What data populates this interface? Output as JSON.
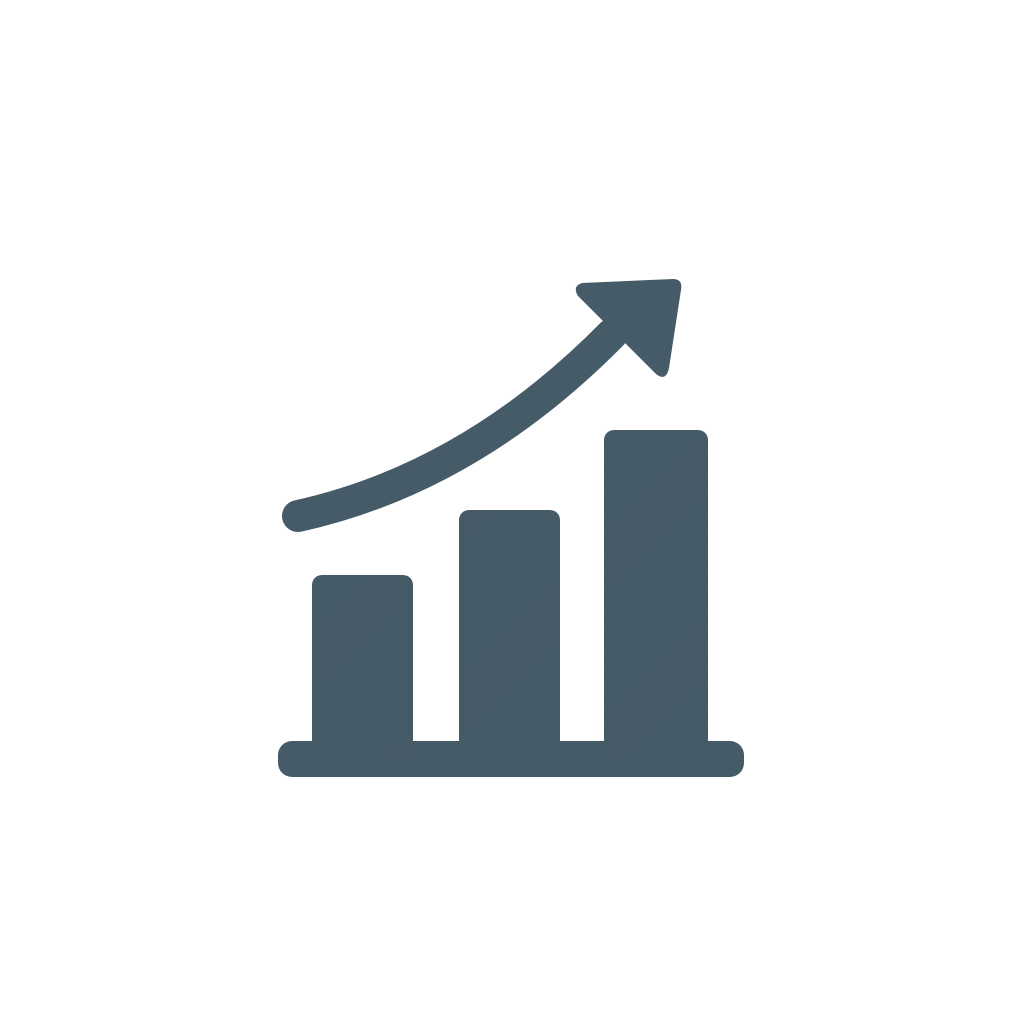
{
  "icon": {
    "name": "growth-chart-icon",
    "color": "#465b68",
    "background": "#ffffff",
    "bar_levels_relative": [
      0.46,
      0.62,
      0.82
    ],
    "trend": "rising"
  }
}
